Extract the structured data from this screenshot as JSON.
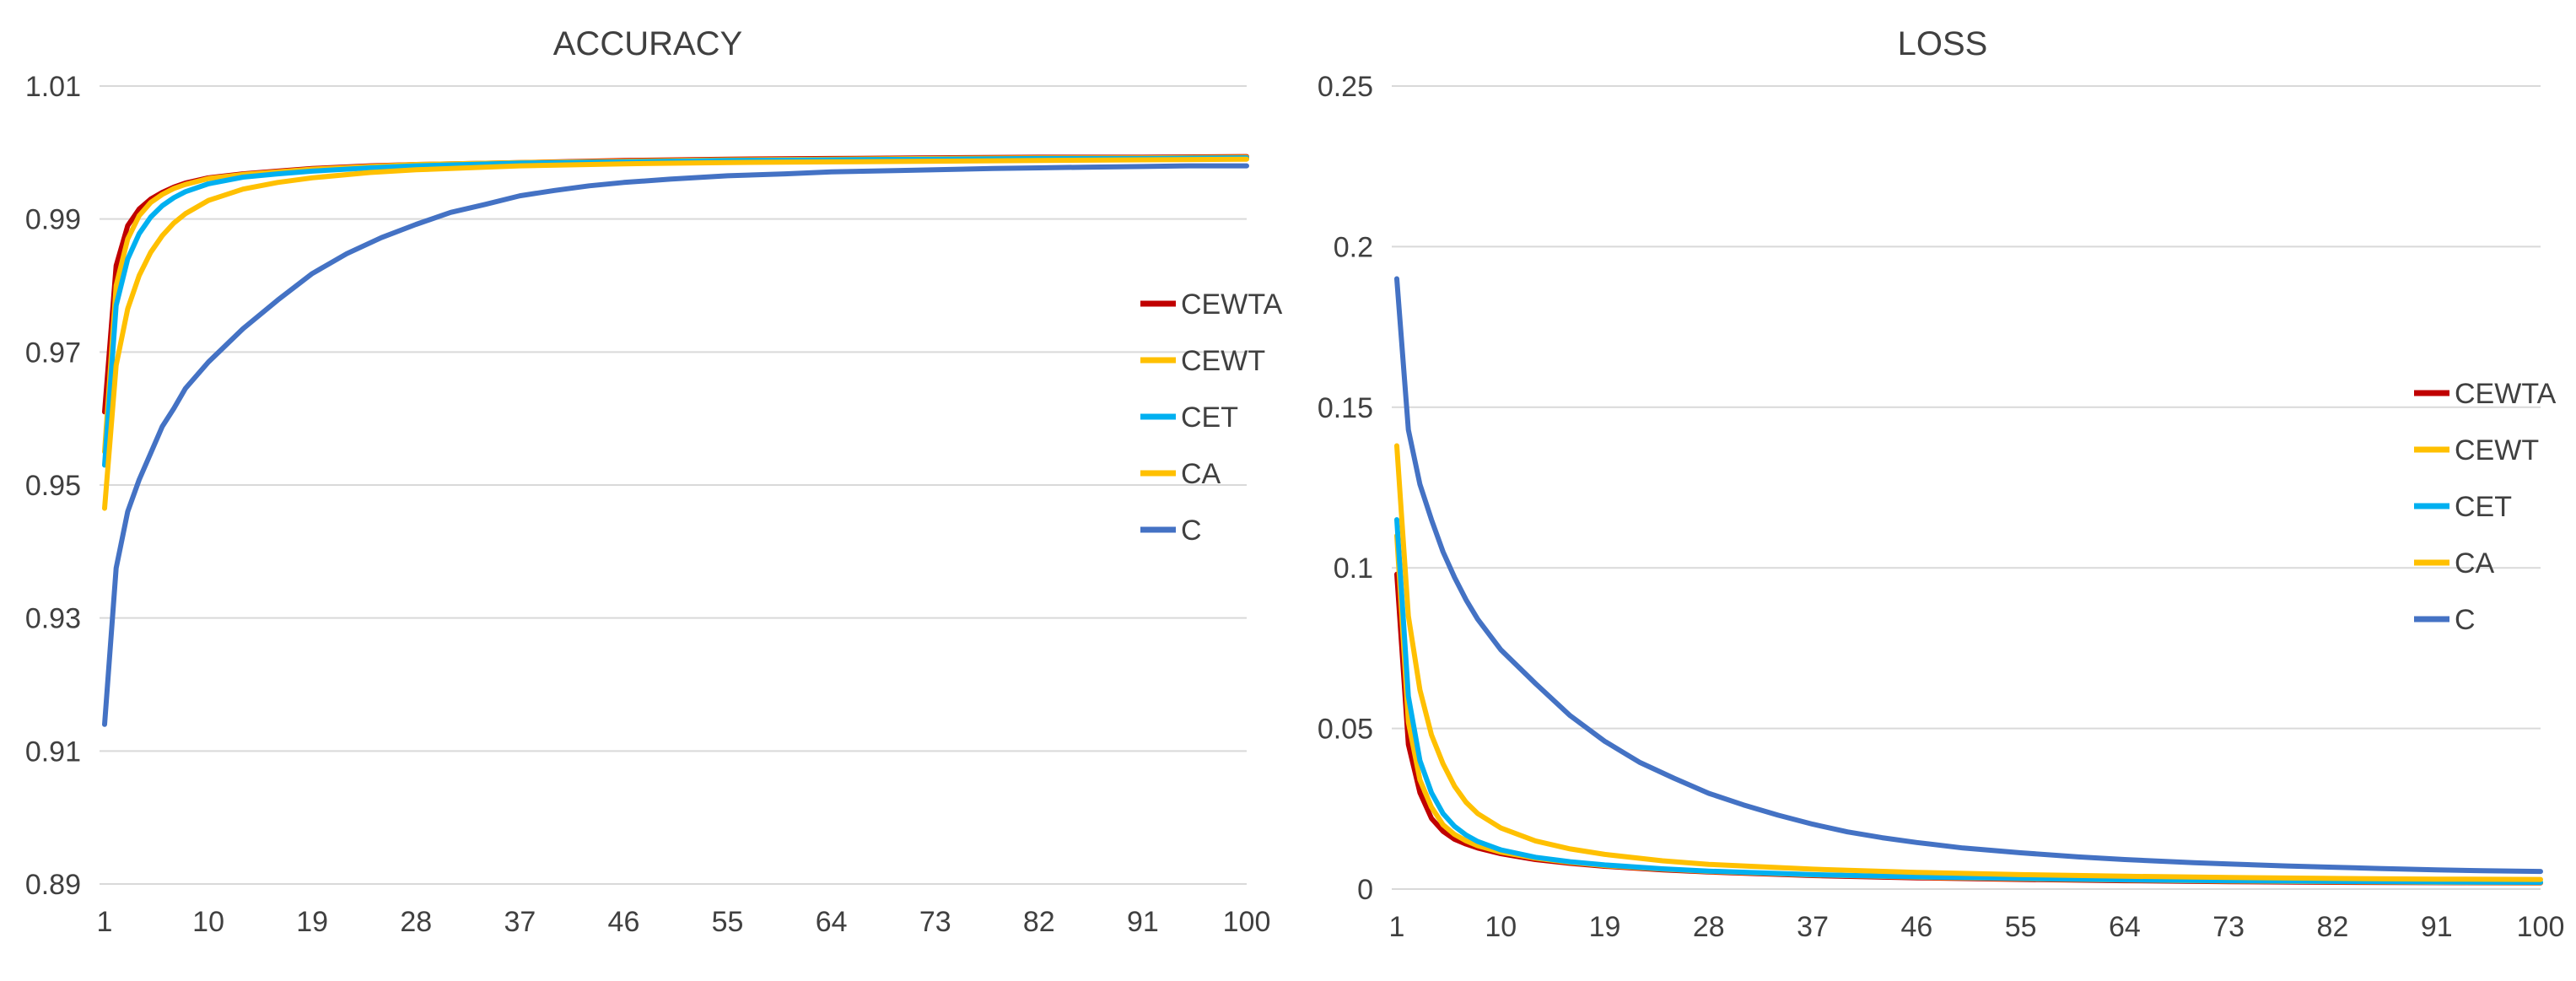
{
  "chart_data": [
    {
      "type": "line",
      "title": "ACCURACY",
      "xlabel": "",
      "ylabel": "",
      "x_range": [
        1,
        100
      ],
      "x_ticks": [
        "1",
        "10",
        "19",
        "28",
        "37",
        "46",
        "55",
        "64",
        "73",
        "82",
        "91",
        "100"
      ],
      "ylim": [
        0.89,
        1.01
      ],
      "y_ticks": [
        "0.89",
        "0.91",
        "0.93",
        "0.95",
        "0.97",
        "0.99",
        "1.01"
      ],
      "grid": true,
      "legend_position": "right",
      "series": [
        {
          "name": "CEWTA",
          "color": "#C00000",
          "points": [
            [
              1,
              0.961
            ],
            [
              2,
              0.983
            ],
            [
              3,
              0.989
            ],
            [
              4,
              0.9915
            ],
            [
              5,
              0.993
            ],
            [
              6,
              0.994
            ],
            [
              7,
              0.9948
            ],
            [
              8,
              0.9954
            ],
            [
              10,
              0.9962
            ],
            [
              13,
              0.9968
            ],
            [
              16,
              0.9972
            ],
            [
              19,
              0.9976
            ],
            [
              24,
              0.998
            ],
            [
              28,
              0.9982
            ],
            [
              37,
              0.9985
            ],
            [
              46,
              0.9988
            ],
            [
              55,
              0.999
            ],
            [
              64,
              0.9991
            ],
            [
              73,
              0.9992
            ],
            [
              82,
              0.9993
            ],
            [
              91,
              0.9993
            ],
            [
              100,
              0.9994
            ]
          ]
        },
        {
          "name": "CEWT",
          "color": "#FFC000",
          "points": [
            [
              1,
              0.955
            ],
            [
              2,
              0.98
            ],
            [
              3,
              0.987
            ],
            [
              4,
              0.9905
            ],
            [
              5,
              0.9925
            ],
            [
              6,
              0.9937
            ],
            [
              7,
              0.9946
            ],
            [
              8,
              0.9952
            ],
            [
              10,
              0.9961
            ],
            [
              13,
              0.9967
            ],
            [
              16,
              0.9971
            ],
            [
              19,
              0.9975
            ],
            [
              24,
              0.9979
            ],
            [
              28,
              0.9982
            ],
            [
              37,
              0.9985
            ],
            [
              46,
              0.9987
            ],
            [
              55,
              0.9989
            ],
            [
              64,
              0.999
            ],
            [
              73,
              0.9991
            ],
            [
              82,
              0.9992
            ],
            [
              91,
              0.9992
            ],
            [
              100,
              0.9993
            ]
          ]
        },
        {
          "name": "CET",
          "color": "#00B0F0",
          "points": [
            [
              1,
              0.953
            ],
            [
              2,
              0.977
            ],
            [
              3,
              0.984
            ],
            [
              4,
              0.9878
            ],
            [
              5,
              0.9903
            ],
            [
              6,
              0.992
            ],
            [
              7,
              0.9932
            ],
            [
              8,
              0.9941
            ],
            [
              10,
              0.9953
            ],
            [
              13,
              0.9963
            ],
            [
              16,
              0.9968
            ],
            [
              19,
              0.9972
            ],
            [
              24,
              0.9977
            ],
            [
              28,
              0.998
            ],
            [
              37,
              0.9984
            ],
            [
              46,
              0.9986
            ],
            [
              55,
              0.9988
            ],
            [
              64,
              0.9989
            ],
            [
              73,
              0.999
            ],
            [
              82,
              0.9991
            ],
            [
              91,
              0.9991
            ],
            [
              100,
              0.9992
            ]
          ]
        },
        {
          "name": "CA",
          "color": "#FFC000",
          "points": [
            [
              1,
              0.9465
            ],
            [
              2,
              0.968
            ],
            [
              3,
              0.9765
            ],
            [
              4,
              0.9815
            ],
            [
              5,
              0.985
            ],
            [
              6,
              0.9875
            ],
            [
              7,
              0.9894
            ],
            [
              8,
              0.9908
            ],
            [
              10,
              0.9928
            ],
            [
              13,
              0.9945
            ],
            [
              16,
              0.9955
            ],
            [
              19,
              0.9962
            ],
            [
              24,
              0.997
            ],
            [
              28,
              0.9974
            ],
            [
              37,
              0.998
            ],
            [
              46,
              0.9983
            ],
            [
              55,
              0.9985
            ],
            [
              64,
              0.9986
            ],
            [
              73,
              0.9987
            ],
            [
              82,
              0.9988
            ],
            [
              91,
              0.9989
            ],
            [
              100,
              0.999
            ]
          ]
        },
        {
          "name": "C",
          "color": "#4472C4",
          "points": [
            [
              1,
              0.914
            ],
            [
              2,
              0.9375
            ],
            [
              3,
              0.946
            ],
            [
              4,
              0.9508
            ],
            [
              5,
              0.9548
            ],
            [
              6,
              0.9588
            ],
            [
              7,
              0.9615
            ],
            [
              8,
              0.9645
            ],
            [
              10,
              0.9685
            ],
            [
              13,
              0.9735
            ],
            [
              16,
              0.9778
            ],
            [
              19,
              0.9818
            ],
            [
              22,
              0.9848
            ],
            [
              25,
              0.9872
            ],
            [
              28,
              0.9892
            ],
            [
              31,
              0.991
            ],
            [
              34,
              0.9922
            ],
            [
              37,
              0.9935
            ],
            [
              40,
              0.9943
            ],
            [
              43,
              0.995
            ],
            [
              46,
              0.9955
            ],
            [
              50,
              0.996
            ],
            [
              55,
              0.9965
            ],
            [
              60,
              0.9968
            ],
            [
              64,
              0.9971
            ],
            [
              70,
              0.9973
            ],
            [
              73,
              0.9974
            ],
            [
              78,
              0.9976
            ],
            [
              82,
              0.9977
            ],
            [
              86,
              0.9978
            ],
            [
              91,
              0.9979
            ],
            [
              95,
              0.998
            ],
            [
              100,
              0.998
            ]
          ]
        }
      ]
    },
    {
      "type": "line",
      "title": "LOSS",
      "xlabel": "",
      "ylabel": "",
      "x_range": [
        1,
        100
      ],
      "x_ticks": [
        "1",
        "10",
        "19",
        "28",
        "37",
        "46",
        "55",
        "64",
        "73",
        "82",
        "91",
        "100"
      ],
      "ylim": [
        0,
        0.25
      ],
      "y_ticks": [
        "0",
        "0.05",
        "0.1",
        "0.15",
        "0.2",
        "0.25"
      ],
      "grid": true,
      "legend_position": "right",
      "series": [
        {
          "name": "CEWTA",
          "color": "#C00000",
          "points": [
            [
              1,
              0.098
            ],
            [
              2,
              0.045
            ],
            [
              3,
              0.03
            ],
            [
              4,
              0.022
            ],
            [
              5,
              0.018
            ],
            [
              6,
              0.0155
            ],
            [
              7,
              0.014
            ],
            [
              8,
              0.0128
            ],
            [
              10,
              0.011
            ],
            [
              13,
              0.0092
            ],
            [
              16,
              0.008
            ],
            [
              19,
              0.0071
            ],
            [
              24,
              0.006
            ],
            [
              28,
              0.0053
            ],
            [
              37,
              0.0042
            ],
            [
              46,
              0.0035
            ],
            [
              55,
              0.003
            ],
            [
              64,
              0.0026
            ],
            [
              73,
              0.0023
            ],
            [
              82,
              0.0021
            ],
            [
              91,
              0.002
            ],
            [
              100,
              0.0019
            ]
          ]
        },
        {
          "name": "CEWT",
          "color": "#FFC000",
          "points": [
            [
              1,
              0.11
            ],
            [
              2,
              0.052
            ],
            [
              3,
              0.034
            ],
            [
              4,
              0.0255
            ],
            [
              5,
              0.02
            ],
            [
              6,
              0.017
            ],
            [
              7,
              0.015
            ],
            [
              8,
              0.0135
            ],
            [
              10,
              0.0115
            ],
            [
              13,
              0.0096
            ],
            [
              16,
              0.0083
            ],
            [
              19,
              0.0073
            ],
            [
              24,
              0.0062
            ],
            [
              28,
              0.0055
            ],
            [
              37,
              0.0044
            ],
            [
              46,
              0.0037
            ],
            [
              55,
              0.0032
            ],
            [
              64,
              0.0028
            ],
            [
              73,
              0.0025
            ],
            [
              82,
              0.0023
            ],
            [
              91,
              0.0021
            ],
            [
              100,
              0.002
            ]
          ]
        },
        {
          "name": "CET",
          "color": "#00B0F0",
          "points": [
            [
              1,
              0.115
            ],
            [
              2,
              0.06
            ],
            [
              3,
              0.04
            ],
            [
              4,
              0.03
            ],
            [
              5,
              0.0235
            ],
            [
              6,
              0.0195
            ],
            [
              7,
              0.0168
            ],
            [
              8,
              0.0148
            ],
            [
              10,
              0.0122
            ],
            [
              13,
              0.0099
            ],
            [
              16,
              0.0085
            ],
            [
              19,
              0.0075
            ],
            [
              24,
              0.0063
            ],
            [
              28,
              0.0056
            ],
            [
              37,
              0.0045
            ],
            [
              46,
              0.0038
            ],
            [
              55,
              0.0033
            ],
            [
              64,
              0.0029
            ],
            [
              73,
              0.0026
            ],
            [
              82,
              0.0024
            ],
            [
              91,
              0.0022
            ],
            [
              100,
              0.0021
            ]
          ]
        },
        {
          "name": "CA",
          "color": "#FFC000",
          "points": [
            [
              1,
              0.138
            ],
            [
              2,
              0.085
            ],
            [
              3,
              0.062
            ],
            [
              4,
              0.048
            ],
            [
              5,
              0.039
            ],
            [
              6,
              0.032
            ],
            [
              7,
              0.027
            ],
            [
              8,
              0.0235
            ],
            [
              10,
              0.019
            ],
            [
              13,
              0.015
            ],
            [
              16,
              0.0125
            ],
            [
              19,
              0.0108
            ],
            [
              24,
              0.0088
            ],
            [
              28,
              0.0077
            ],
            [
              37,
              0.0062
            ],
            [
              46,
              0.0052
            ],
            [
              55,
              0.0045
            ],
            [
              64,
              0.004
            ],
            [
              73,
              0.0036
            ],
            [
              82,
              0.0033
            ],
            [
              91,
              0.0031
            ],
            [
              100,
              0.003
            ]
          ]
        },
        {
          "name": "C",
          "color": "#4472C4",
          "points": [
            [
              1,
              0.19
            ],
            [
              2,
              0.143
            ],
            [
              3,
              0.126
            ],
            [
              4,
              0.115
            ],
            [
              5,
              0.105
            ],
            [
              6,
              0.097
            ],
            [
              7,
              0.09
            ],
            [
              8,
              0.084
            ],
            [
              10,
              0.0745
            ],
            [
              13,
              0.064
            ],
            [
              16,
              0.054
            ],
            [
              19,
              0.046
            ],
            [
              22,
              0.0395
            ],
            [
              25,
              0.0345
            ],
            [
              28,
              0.0298
            ],
            [
              31,
              0.0262
            ],
            [
              34,
              0.023
            ],
            [
              37,
              0.0202
            ],
            [
              40,
              0.0178
            ],
            [
              43,
              0.016
            ],
            [
              46,
              0.0145
            ],
            [
              50,
              0.0128
            ],
            [
              55,
              0.0113
            ],
            [
              60,
              0.01
            ],
            [
              64,
              0.0092
            ],
            [
              70,
              0.0082
            ],
            [
              73,
              0.0078
            ],
            [
              78,
              0.0072
            ],
            [
              82,
              0.0068
            ],
            [
              86,
              0.0064
            ],
            [
              91,
              0.006
            ],
            [
              95,
              0.0057
            ],
            [
              100,
              0.0055
            ]
          ]
        }
      ]
    }
  ]
}
